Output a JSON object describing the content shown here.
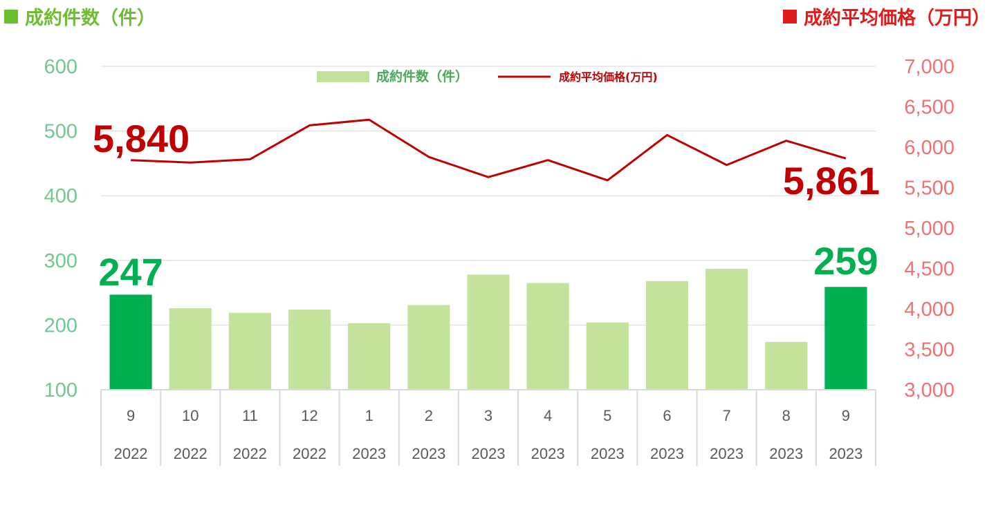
{
  "header": {
    "left_title": "成約件数（件）",
    "right_title": "成約平均価格（万円）",
    "left_color": "#6cbd2f",
    "right_color": "#e01b1b"
  },
  "chart_data": {
    "type": "bar+line",
    "categories": [
      "9",
      "10",
      "11",
      "12",
      "1",
      "2",
      "3",
      "4",
      "5",
      "6",
      "7",
      "8",
      "9"
    ],
    "years": [
      "2022",
      "2022",
      "2022",
      "2022",
      "2023",
      "2023",
      "2023",
      "2023",
      "2023",
      "2023",
      "2023",
      "2023",
      "2023"
    ],
    "series": [
      {
        "name": "成約件数（件）",
        "type": "bar",
        "axis": "left",
        "values": [
          247,
          226,
          219,
          224,
          203,
          231,
          278,
          265,
          204,
          268,
          287,
          174,
          259
        ],
        "color": "#c3e29b",
        "highlight_color": "#00b050",
        "highlight_indices": [
          0,
          12
        ]
      },
      {
        "name": "成約平均価格(万円)",
        "type": "line",
        "axis": "right",
        "values": [
          5840,
          5810,
          5850,
          6270,
          6340,
          5880,
          5630,
          5840,
          5590,
          6150,
          5780,
          6080,
          5861
        ],
        "color": "#c00000"
      }
    ],
    "y_left": {
      "min": 100,
      "max": 600,
      "ticks": [
        "100",
        "200",
        "300",
        "400",
        "500",
        "600"
      ],
      "color": "#70c890"
    },
    "y_right": {
      "min": 3000,
      "max": 7000,
      "ticks": [
        "3,000",
        "3,500",
        "4,000",
        "4,500",
        "5,000",
        "5,500",
        "6,000",
        "6,500",
        "7,000"
      ],
      "color": "#f07070"
    },
    "gridlines": true,
    "legend_position": "top-center",
    "annotations": {
      "first_price": "5,840",
      "last_price": "5,861",
      "first_count": "247",
      "last_count": "259",
      "price_color": "#c00000",
      "count_color": "#00b050"
    }
  }
}
